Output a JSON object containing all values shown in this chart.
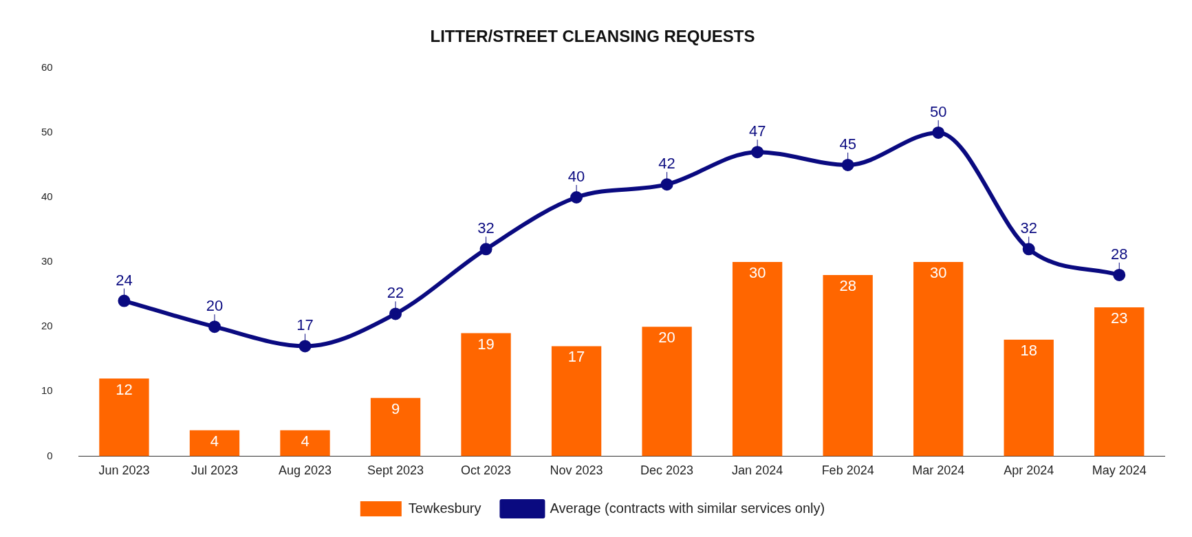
{
  "chart_data": {
    "type": "bar",
    "title": "LITTER/STREET CLEANSING REQUESTS",
    "categories": [
      "Jun 2023",
      "Jul 2023",
      "Aug 2023",
      "Sept 2023",
      "Oct 2023",
      "Nov 2023",
      "Dec 2023",
      "Jan 2024",
      "Feb 2024",
      "Mar 2024",
      "Apr 2024",
      "May 2024"
    ],
    "series": [
      {
        "name": "Tewkesbury",
        "color": "#ff6600",
        "values": [
          12,
          4,
          4,
          9,
          19,
          17,
          20,
          30,
          28,
          30,
          18,
          23
        ]
      },
      {
        "name": "Average (contracts with similar services only)",
        "type": "line",
        "color": "#0a0a80",
        "values": [
          24,
          20,
          17,
          22,
          32,
          40,
          42,
          47,
          45,
          50,
          32,
          28
        ]
      }
    ],
    "ylim": [
      0,
      60
    ],
    "yticks": [
      0,
      10,
      20,
      30,
      40,
      50,
      60
    ],
    "grid": false,
    "legend": "bottom",
    "marker": "circle",
    "line_style": "solid",
    "data_labels": true
  }
}
